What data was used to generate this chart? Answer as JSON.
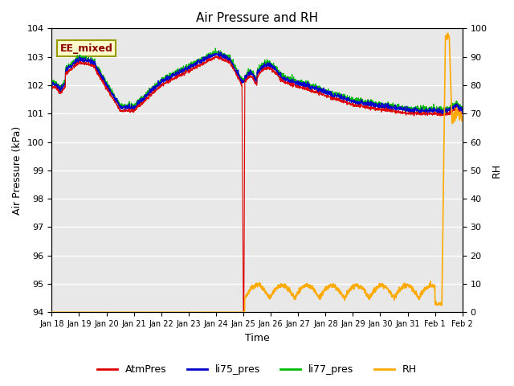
{
  "title": "Air Pressure and RH",
  "xlabel": "Time",
  "ylabel_left": "Air Pressure (kPa)",
  "ylabel_right": "RH",
  "ylim_left": [
    94.0,
    104.0
  ],
  "ylim_right": [
    0,
    100
  ],
  "yticks_left": [
    94.0,
    95.0,
    96.0,
    97.0,
    98.0,
    99.0,
    100.0,
    101.0,
    102.0,
    103.0,
    104.0
  ],
  "yticks_right": [
    0,
    10,
    20,
    30,
    40,
    50,
    60,
    70,
    80,
    90,
    100
  ],
  "bg_color": "#e8e8e8",
  "fig_color": "#ffffff",
  "annotation_text": "EE_mixed",
  "annotation_color": "#8b0000",
  "annotation_bg": "#ffffcc",
  "annotation_border": "#999900",
  "legend_labels": [
    "AtmPres",
    "li75_pres",
    "li77_pres",
    "RH"
  ],
  "line_colors": {
    "AtmPres": "#dd0000",
    "li75_pres": "#0000cc",
    "li77_pres": "#00bb00",
    "RH": "#ffaa00"
  },
  "x_tick_labels": [
    "Jan 18",
    "Jan 19",
    "Jan 20",
    "Jan 21",
    "Jan 22",
    "Jan 23",
    "Jan 24",
    "Jan 25",
    "Jan 26",
    "Jan 27",
    "Jan 28",
    "Jan 29",
    "Jan 30",
    "Jan 31",
    "Feb 1",
    "Feb 2"
  ],
  "x_tick_positions": [
    0,
    1,
    2,
    3,
    4,
    5,
    6,
    7,
    8,
    9,
    10,
    11,
    12,
    13,
    14,
    15
  ]
}
